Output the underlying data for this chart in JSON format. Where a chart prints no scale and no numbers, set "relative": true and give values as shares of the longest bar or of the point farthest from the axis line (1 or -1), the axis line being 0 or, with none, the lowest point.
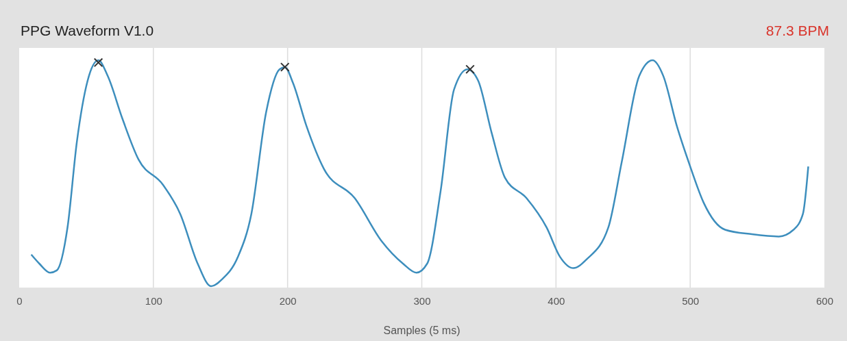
{
  "chart_data": {
    "type": "line",
    "title": "PPG Waveform V1.0",
    "xlabel": "Samples (5 ms)",
    "annotations": [
      "87.3 BPM"
    ],
    "relative": true,
    "xlim": [
      0,
      600
    ],
    "xticks": [
      0,
      100,
      200,
      300,
      400,
      500,
      600
    ],
    "grid": "x",
    "series": [
      {
        "color": "#3d8ebd",
        "marker": "none",
        "x": [
          9,
          15,
          23,
          28,
          36,
          43,
          51,
          59,
          66,
          77,
          89,
          107,
          120,
          133,
          143,
          151,
          163,
          173,
          184,
          194,
          198,
          204,
          214,
          227,
          250,
          270,
          286,
          296,
          304,
          314,
          324,
          334,
          342,
          352,
          362,
          378,
          393,
          403,
          413,
          423,
          439,
          449,
          462,
          472,
          480,
          490,
          500,
          510,
          526,
          546,
          566,
          577,
          584,
          588
        ],
        "values": [
          0.14,
          0.1,
          0.06,
          0.07,
          0.26,
          0.64,
          0.91,
          1.0,
          0.93,
          0.74,
          0.56,
          0.45,
          0.32,
          0.1,
          0,
          0.03,
          0.13,
          0.32,
          0.77,
          0.96,
          0.97,
          0.9,
          0.71,
          0.52,
          0.39,
          0.2,
          0.1,
          0.06,
          0.1,
          0.42,
          0.87,
          0.96,
          0.91,
          0.68,
          0.48,
          0.39,
          0.26,
          0.13,
          0.08,
          0.12,
          0.26,
          0.55,
          0.93,
          1.0,
          0.93,
          0.71,
          0.53,
          0.37,
          0.25,
          0.23,
          0.22,
          0.25,
          0.32,
          0.53
        ]
      },
      {
        "type": "scatter",
        "color": "#333333",
        "marker": "cross",
        "x": [
          59,
          198,
          336
        ],
        "values": [
          0.99,
          0.97,
          0.96
        ]
      }
    ]
  }
}
